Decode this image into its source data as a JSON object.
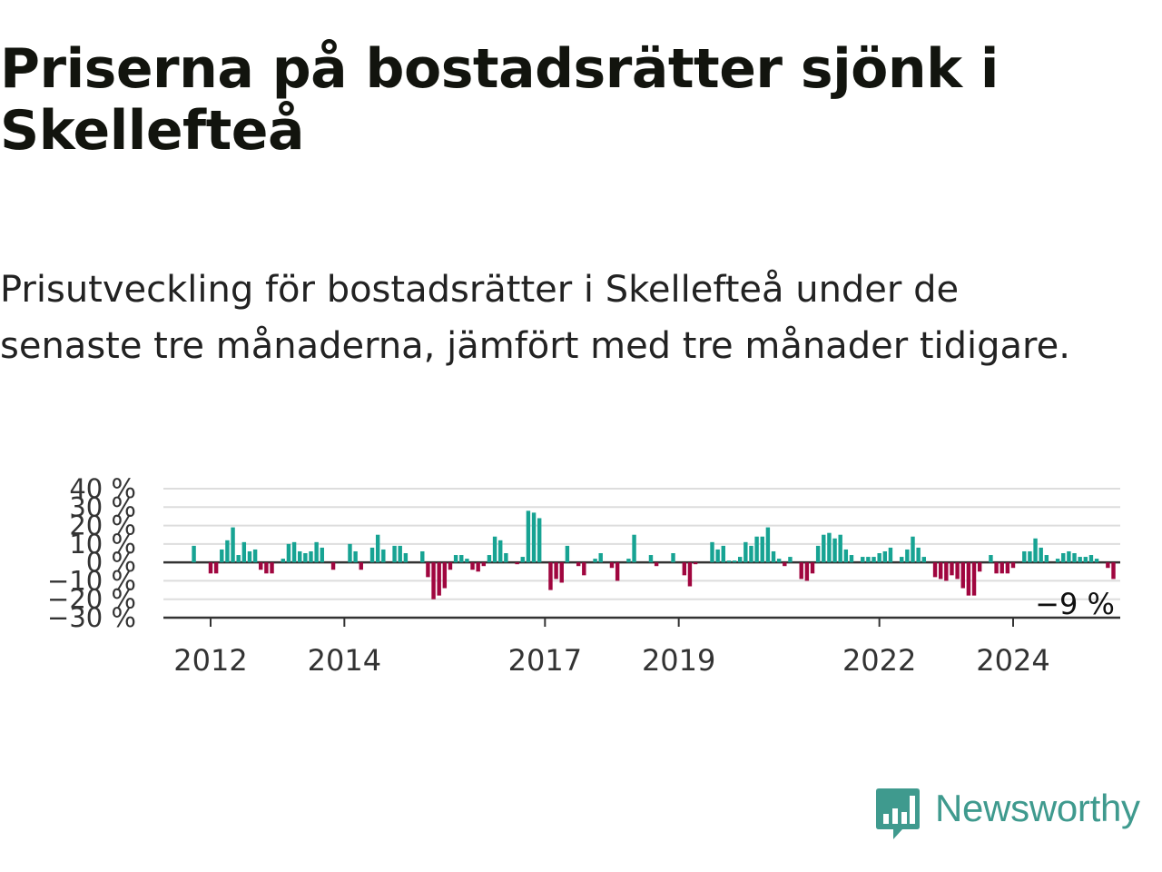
{
  "title": "Priserna på bostadsrätter sjönk i Skellefteå",
  "subtitle": "Prisutveckling för bostadsrätter i Skellefteå under de senaste tre månaderna, jämfört med tre månader tidigare.",
  "brand": {
    "name": "Newsworthy",
    "logo_icon": "bar-chart-speech-bubble-icon"
  },
  "colors": {
    "positive": "#17a393",
    "negative": "#a0063f",
    "grid": "#dddddd",
    "axis": "#333333",
    "brand": "#3f9a8e"
  },
  "chart_data": {
    "type": "bar",
    "y_ticks": [
      "40 %",
      "30 %",
      "20 %",
      "10 %",
      "0 %",
      "−10 %",
      "−20 %",
      "−30 %"
    ],
    "ylim": [
      -30,
      40
    ],
    "x_ticks": [
      "2012",
      "2014",
      "2017",
      "2019",
      "2022",
      "2024"
    ],
    "last_value_label": "−9 %",
    "x_start": "2011-10",
    "values": [
      9,
      0,
      0,
      -6,
      -6,
      7,
      12,
      19,
      4,
      11,
      6,
      7,
      -4,
      -6,
      -6,
      0,
      2,
      10,
      11,
      6,
      5,
      6,
      11,
      8,
      0,
      -4,
      0,
      0,
      10,
      6,
      -4,
      0,
      8,
      15,
      7,
      0,
      9,
      9,
      5,
      0,
      0,
      6,
      -8,
      -20,
      -18,
      -14,
      -4,
      4,
      4,
      2,
      -4,
      -5,
      -2,
      4,
      14,
      12,
      5,
      0,
      -1,
      3,
      28,
      27,
      24,
      0,
      -15,
      -9,
      -11,
      9,
      0,
      -2,
      -7,
      0,
      2,
      5,
      0,
      -3,
      -10,
      0,
      2,
      15,
      0,
      0,
      4,
      -2,
      0,
      0,
      5,
      0,
      -7,
      -13,
      -1,
      0,
      0,
      11,
      7,
      9,
      1,
      1,
      3,
      11,
      9,
      14,
      14,
      19,
      6,
      2,
      -2,
      3,
      0,
      -9,
      -10,
      -6,
      9,
      15,
      16,
      13,
      15,
      7,
      4,
      0,
      3,
      3,
      3,
      5,
      6,
      8,
      0,
      3,
      7,
      14,
      8,
      3,
      0,
      -8,
      -9,
      -10,
      -7,
      -9,
      -14,
      -18,
      -18,
      -5,
      0,
      4,
      -6,
      -6,
      -6,
      -3,
      0,
      6,
      6,
      13,
      8,
      4,
      0,
      2,
      5,
      6,
      5,
      3,
      3,
      4,
      2,
      0,
      -3,
      -9
    ]
  }
}
